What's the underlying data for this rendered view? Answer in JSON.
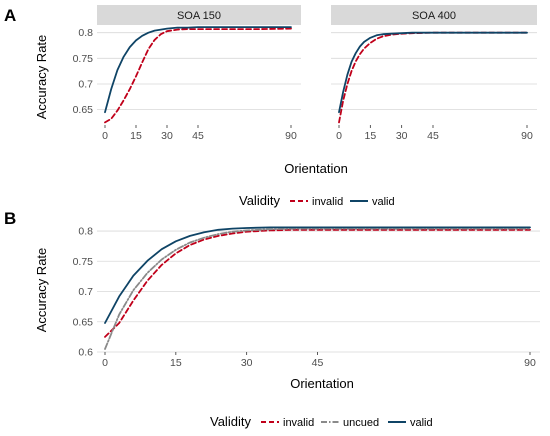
{
  "colors": {
    "invalid": "#c0001a",
    "valid": "#0f4466",
    "uncued": "#8a8a8a"
  },
  "panel_a": {
    "tag": "A",
    "ylabel": "Accuracy Rate",
    "xlabel": "Orientation",
    "legend": {
      "title": "Validity",
      "items": [
        {
          "label": "invalid",
          "series": "invalid"
        },
        {
          "label": "valid",
          "series": "valid"
        }
      ]
    }
  },
  "panel_b": {
    "tag": "B",
    "ylabel": "Accuracy Rate",
    "xlabel": "Orientation",
    "legend": {
      "title": "Validity",
      "items": [
        {
          "label": "invalid",
          "series": "invalid"
        },
        {
          "label": "uncued",
          "series": "uncued"
        },
        {
          "label": "valid",
          "series": "valid"
        }
      ]
    }
  },
  "chart_data": [
    {
      "type": "line",
      "facet": "SOA 150",
      "xlabel": "Orientation",
      "ylabel": "Accuracy Rate",
      "xlim": [
        0,
        90
      ],
      "ylim": [
        0.62,
        0.815
      ],
      "xticks": [
        0,
        15,
        30,
        45,
        90
      ],
      "yticks": [
        0.65,
        0.7,
        0.75,
        0.8
      ],
      "legend_position": "bottom",
      "grid": true,
      "series": [
        {
          "name": "invalid",
          "linestyle": "dashed",
          "x": [
            0,
            3,
            6,
            9,
            12,
            15,
            18,
            21,
            24,
            27,
            30,
            35,
            40,
            45,
            60,
            75,
            90
          ],
          "y": [
            0.625,
            0.632,
            0.648,
            0.668,
            0.69,
            0.715,
            0.742,
            0.768,
            0.786,
            0.797,
            0.803,
            0.806,
            0.807,
            0.807,
            0.807,
            0.807,
            0.808
          ]
        },
        {
          "name": "valid",
          "linestyle": "solid",
          "x": [
            0,
            3,
            6,
            9,
            12,
            15,
            18,
            21,
            24,
            27,
            30,
            35,
            40,
            45,
            60,
            75,
            90
          ],
          "y": [
            0.645,
            0.69,
            0.727,
            0.753,
            0.772,
            0.785,
            0.794,
            0.8,
            0.804,
            0.806,
            0.808,
            0.81,
            0.81,
            0.811,
            0.811,
            0.811,
            0.811
          ]
        }
      ]
    },
    {
      "type": "line",
      "facet": "SOA 400",
      "xlabel": "Orientation",
      "ylabel": "Accuracy Rate",
      "xlim": [
        0,
        90
      ],
      "ylim": [
        0.62,
        0.815
      ],
      "xticks": [
        0,
        15,
        30,
        45,
        90
      ],
      "yticks": [
        0.65,
        0.7,
        0.75,
        0.8
      ],
      "legend_position": "bottom",
      "grid": true,
      "series": [
        {
          "name": "invalid",
          "linestyle": "dashed",
          "x": [
            0,
            2,
            4,
            6,
            8,
            10,
            12,
            15,
            18,
            21,
            25,
            30,
            35,
            45,
            60,
            75,
            90
          ],
          "y": [
            0.625,
            0.668,
            0.7,
            0.725,
            0.744,
            0.758,
            0.769,
            0.78,
            0.788,
            0.793,
            0.796,
            0.798,
            0.799,
            0.8,
            0.8,
            0.8,
            0.8
          ]
        },
        {
          "name": "valid",
          "linestyle": "solid",
          "x": [
            0,
            2,
            4,
            6,
            8,
            10,
            12,
            15,
            18,
            21,
            25,
            30,
            35,
            45,
            60,
            75,
            90
          ],
          "y": [
            0.645,
            0.685,
            0.718,
            0.743,
            0.76,
            0.773,
            0.782,
            0.79,
            0.795,
            0.797,
            0.798,
            0.799,
            0.8,
            0.8,
            0.8,
            0.8,
            0.8
          ]
        }
      ]
    },
    {
      "type": "line",
      "xlabel": "Orientation",
      "ylabel": "Accuracy Rate",
      "xlim": [
        0,
        90
      ],
      "ylim": [
        0.6,
        0.81
      ],
      "xticks": [
        0,
        15,
        30,
        45,
        90
      ],
      "yticks": [
        0.6,
        0.65,
        0.7,
        0.75,
        0.8
      ],
      "legend_position": "bottom",
      "grid": true,
      "series": [
        {
          "name": "invalid",
          "linestyle": "dashed",
          "x": [
            0,
            3,
            6,
            9,
            12,
            15,
            18,
            21,
            24,
            27,
            30,
            35,
            40,
            45,
            60,
            75,
            90
          ],
          "y": [
            0.625,
            0.648,
            0.685,
            0.718,
            0.744,
            0.763,
            0.777,
            0.786,
            0.792,
            0.796,
            0.799,
            0.801,
            0.802,
            0.802,
            0.802,
            0.802,
            0.802
          ]
        },
        {
          "name": "uncued",
          "linestyle": "dashdot",
          "x": [
            0,
            3,
            6,
            9,
            12,
            15,
            18,
            21,
            24,
            27,
            30,
            35,
            40,
            45,
            60,
            75,
            90
          ],
          "y": [
            0.605,
            0.662,
            0.702,
            0.731,
            0.753,
            0.769,
            0.781,
            0.789,
            0.795,
            0.799,
            0.801,
            0.803,
            0.804,
            0.804,
            0.804,
            0.804,
            0.804
          ]
        },
        {
          "name": "valid",
          "linestyle": "solid",
          "x": [
            0,
            3,
            6,
            9,
            12,
            15,
            18,
            21,
            24,
            27,
            30,
            35,
            40,
            45,
            60,
            75,
            90
          ],
          "y": [
            0.648,
            0.692,
            0.726,
            0.751,
            0.77,
            0.783,
            0.792,
            0.798,
            0.802,
            0.804,
            0.805,
            0.806,
            0.806,
            0.806,
            0.806,
            0.806,
            0.806
          ]
        }
      ]
    }
  ]
}
